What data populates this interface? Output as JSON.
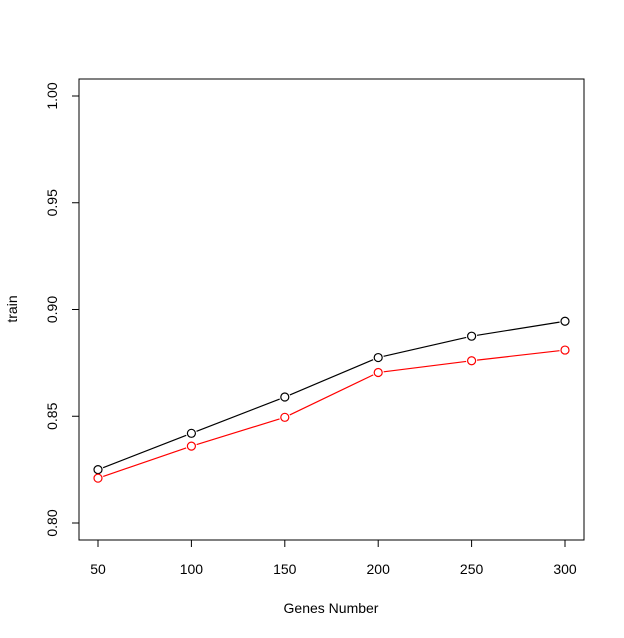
{
  "chart_data": {
    "type": "line",
    "title": "",
    "xlabel": "Genes Number",
    "ylabel": "train",
    "x": [
      50,
      100,
      150,
      200,
      250,
      300
    ],
    "xlim": [
      50,
      300
    ],
    "ylim": [
      0.8,
      1.0
    ],
    "x_ticks": [
      "50",
      "100",
      "150",
      "200",
      "250",
      "300"
    ],
    "y_ticks": [
      "0.80",
      "0.85",
      "0.90",
      "0.95",
      "1.00"
    ],
    "grid": false,
    "series": [
      {
        "color": "#000000",
        "marker": "open-circle",
        "values": [
          0.825,
          0.842,
          0.859,
          0.8775,
          0.8875,
          0.8945
        ]
      },
      {
        "color": "#ff0000",
        "marker": "open-circle",
        "values": [
          0.821,
          0.836,
          0.8495,
          0.8705,
          0.876,
          0.881
        ]
      }
    ]
  }
}
